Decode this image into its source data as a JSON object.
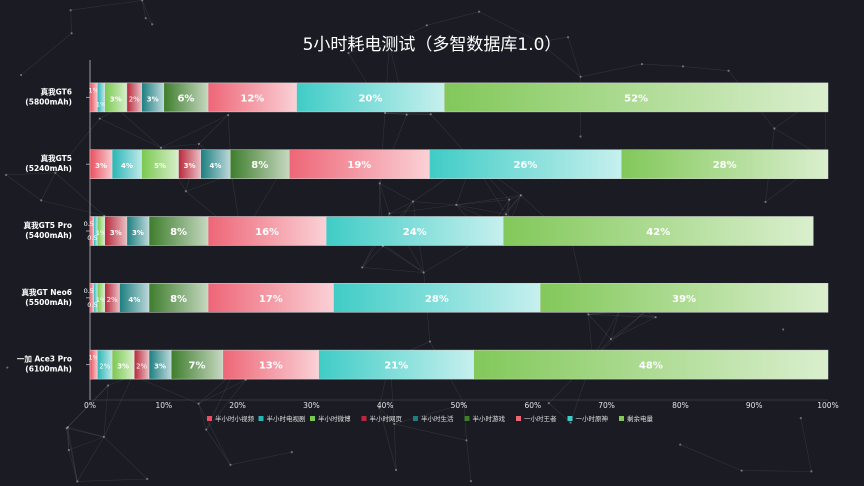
{
  "title": "5小时耗电测试（多智数据库1.0）",
  "legend_label_colors": {
    "red": "#e24a5a",
    "teal": "#2fbcbc",
    "green": "#6cbf4a"
  },
  "chart_data": {
    "type": "bar",
    "orientation": "horizontal",
    "stacked": "percent",
    "title": "5小时耗电测试（多智数据库1.0）",
    "categories": [
      [
        "真我GT6",
        "(5800mAh)"
      ],
      [
        "真我GT5",
        "(5240mAh)"
      ],
      [
        "真我GT5 Pro",
        "(5400mAh)"
      ],
      [
        "真我GT Neo6",
        "(5500mAh)"
      ],
      [
        "一加 Ace3 Pro",
        "(6100mAh)"
      ]
    ],
    "xlim": [
      0,
      100
    ],
    "x_ticks": [
      "0%",
      "10%",
      "20%",
      "30%",
      "40%",
      "50%",
      "60%",
      "70%",
      "80%",
      "90%",
      "100%"
    ],
    "grid": false,
    "legend_position": "bottom",
    "series": [
      {
        "name": "半小时小视频",
        "color": "#e8505f",
        "values": [
          1,
          3,
          0.5,
          0.5,
          1
        ],
        "labels": [
          "1%",
          "3%",
          "0.5%",
          "0.5%",
          "1%"
        ]
      },
      {
        "name": "半小时电视剧",
        "color": "#2ab5b5",
        "values": [
          1,
          4,
          0.5,
          0.5,
          2
        ],
        "labels": [
          "1%",
          "4%",
          "0.5%",
          "0.5%",
          "2%"
        ]
      },
      {
        "name": "半小时微博",
        "color": "#7ac94f",
        "values": [
          3,
          5,
          1,
          1,
          3
        ],
        "labels": [
          "3%",
          "5%",
          "1%",
          "1%",
          "3%"
        ]
      },
      {
        "name": "半小时网页",
        "color": "#b8283a",
        "values": [
          2,
          3,
          3,
          2,
          2
        ],
        "labels": [
          "2%",
          "3%",
          "3%",
          "2%",
          "2%"
        ]
      },
      {
        "name": "半小时生活",
        "color": "#1c7e80",
        "values": [
          3,
          4,
          3,
          4,
          3
        ],
        "labels": [
          "3%",
          "4%",
          "3%",
          "4%",
          "3%"
        ]
      },
      {
        "name": "半小时游戏",
        "color": "#3e7d2c",
        "values": [
          6,
          8,
          8,
          8,
          7
        ],
        "labels": [
          "6%",
          "8%",
          "8%",
          "8%",
          "7%"
        ]
      },
      {
        "name": "一小时王者",
        "color": "#ee6677",
        "values": [
          12,
          19,
          16,
          17,
          13
        ],
        "labels": [
          "12%",
          "19%",
          "16%",
          "17%",
          "13%"
        ]
      },
      {
        "name": "一小时原神",
        "color": "#40ccc6",
        "values": [
          20,
          26,
          24,
          28,
          21
        ],
        "labels": [
          "20%",
          "26%",
          "24%",
          "28%",
          "21%"
        ]
      },
      {
        "name": "剩余电量",
        "color": "#82c85a",
        "values": [
          52,
          28,
          42,
          39,
          48
        ],
        "labels": [
          "52%",
          "28%",
          "42%",
          "39%",
          "48%"
        ]
      }
    ]
  }
}
